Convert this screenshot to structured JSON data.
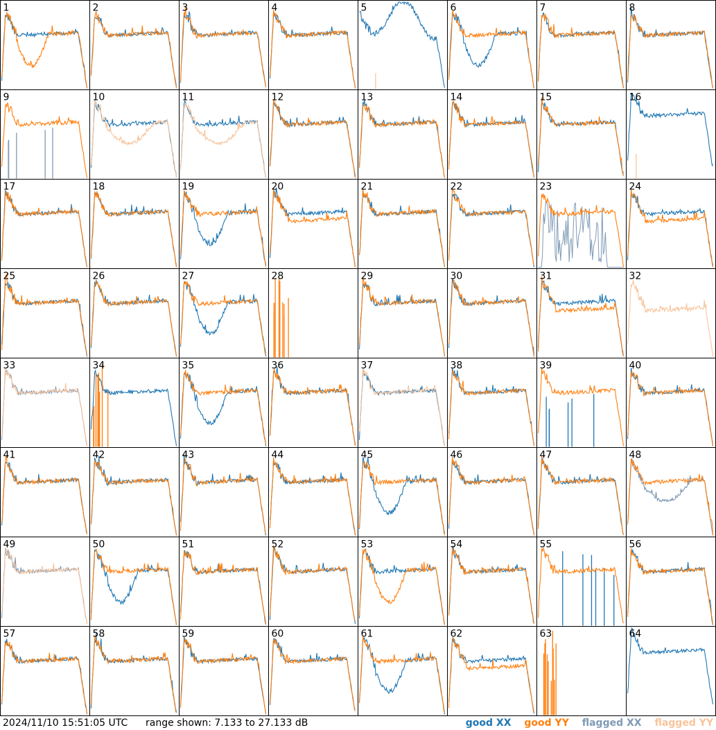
{
  "footer": {
    "timestamp": "2024/11/10 15:51:05 UTC",
    "range_text": "range shown: 7.133 to 27.133 dB"
  },
  "legend": [
    {
      "label": "good XX",
      "color": "#1f77b4"
    },
    {
      "label": "good YY",
      "color": "#ff7f0e"
    },
    {
      "label": "flagged XX",
      "color": "#7f9ab5"
    },
    {
      "label": "flagged YY",
      "color": "#f8c49c"
    }
  ],
  "chart_data": {
    "type": "line",
    "grid": {
      "rows": 8,
      "cols": 8
    },
    "ylim": [
      7.133,
      27.133
    ],
    "yunit": "dB",
    "panels": [
      {
        "label": "1",
        "x": "normal",
        "y": "dip"
      },
      {
        "label": "2",
        "x": "normal",
        "y": "normal"
      },
      {
        "label": "3",
        "x": "normal",
        "y": "normal"
      },
      {
        "label": "4",
        "x": "normal",
        "y": "normal"
      },
      {
        "label": "5",
        "x": "wave",
        "y": "spike"
      },
      {
        "label": "6",
        "x": "dip",
        "y": "normal"
      },
      {
        "label": "7",
        "x": "normal",
        "y": "normal"
      },
      {
        "label": "8",
        "x": "normal",
        "y": "normal"
      },
      {
        "label": "9",
        "x": "flagged_spikes",
        "y": "normal"
      },
      {
        "label": "10",
        "x": "normal",
        "y": "flagged_dip"
      },
      {
        "label": "11",
        "x": "normal",
        "y": "flagged_dip"
      },
      {
        "label": "12",
        "x": "normal",
        "y": "normal"
      },
      {
        "label": "13",
        "x": "normal",
        "y": "normal"
      },
      {
        "label": "14",
        "x": "normal",
        "y": "normal"
      },
      {
        "label": "15",
        "x": "normal",
        "y": "normal"
      },
      {
        "label": "16",
        "x": "high",
        "y": "spike"
      },
      {
        "label": "17",
        "x": "normal",
        "y": "normal"
      },
      {
        "label": "18",
        "x": "normal",
        "y": "normal"
      },
      {
        "label": "19",
        "x": "dip",
        "y": "normal"
      },
      {
        "label": "20",
        "x": "normal",
        "y": "low"
      },
      {
        "label": "21",
        "x": "normal",
        "y": "normal"
      },
      {
        "label": "22",
        "x": "normal",
        "y": "normal"
      },
      {
        "label": "23",
        "x": "flagged_noise",
        "y": "normal"
      },
      {
        "label": "24",
        "x": "normal",
        "y": "low"
      },
      {
        "label": "25",
        "x": "normal",
        "y": "normal"
      },
      {
        "label": "26",
        "x": "normal",
        "y": "normal"
      },
      {
        "label": "27",
        "x": "dip",
        "y": "normal"
      },
      {
        "label": "28",
        "x": "none",
        "y": "spikes_left"
      },
      {
        "label": "29",
        "x": "normal",
        "y": "normal"
      },
      {
        "label": "30",
        "x": "normal",
        "y": "normal"
      },
      {
        "label": "31",
        "x": "normal",
        "y": "low"
      },
      {
        "label": "32",
        "x": "none",
        "y": "flagged_low"
      },
      {
        "label": "33",
        "x": "flagged",
        "y": "flagged"
      },
      {
        "label": "34",
        "x": "normal",
        "y": "spikes_left"
      },
      {
        "label": "35",
        "x": "dip",
        "y": "normal"
      },
      {
        "label": "36",
        "x": "normal",
        "y": "normal"
      },
      {
        "label": "37",
        "x": "normal",
        "y": "flagged"
      },
      {
        "label": "38",
        "x": "normal",
        "y": "normal"
      },
      {
        "label": "39",
        "x": "spike",
        "y": "normal"
      },
      {
        "label": "40",
        "x": "normal",
        "y": "normal"
      },
      {
        "label": "41",
        "x": "normal",
        "y": "normal"
      },
      {
        "label": "42",
        "x": "normal",
        "y": "normal"
      },
      {
        "label": "43",
        "x": "normal",
        "y": "normal"
      },
      {
        "label": "44",
        "x": "normal",
        "y": "normal"
      },
      {
        "label": "45",
        "x": "dip",
        "y": "normal"
      },
      {
        "label": "46",
        "x": "normal",
        "y": "normal"
      },
      {
        "label": "47",
        "x": "normal",
        "y": "normal"
      },
      {
        "label": "48",
        "x": "flagged_dip",
        "y": "normal"
      },
      {
        "label": "49",
        "x": "flagged",
        "y": "flagged"
      },
      {
        "label": "50",
        "x": "dip",
        "y": "normal"
      },
      {
        "label": "51",
        "x": "normal",
        "y": "normal"
      },
      {
        "label": "52",
        "x": "normal",
        "y": "normal"
      },
      {
        "label": "53",
        "x": "normal",
        "y": "dip"
      },
      {
        "label": "54",
        "x": "normal",
        "y": "normal"
      },
      {
        "label": "55",
        "x": "spike",
        "y": "normal"
      },
      {
        "label": "56",
        "x": "normal",
        "y": "normal"
      },
      {
        "label": "57",
        "x": "normal",
        "y": "normal"
      },
      {
        "label": "58",
        "x": "normal",
        "y": "normal"
      },
      {
        "label": "59",
        "x": "normal",
        "y": "normal"
      },
      {
        "label": "60",
        "x": "normal",
        "y": "normal"
      },
      {
        "label": "61",
        "x": "dip",
        "y": "normal"
      },
      {
        "label": "62",
        "x": "normal",
        "y": "low"
      },
      {
        "label": "63",
        "x": "none",
        "y": "spikes_left"
      },
      {
        "label": "64",
        "x": "high",
        "y": "none"
      }
    ]
  }
}
